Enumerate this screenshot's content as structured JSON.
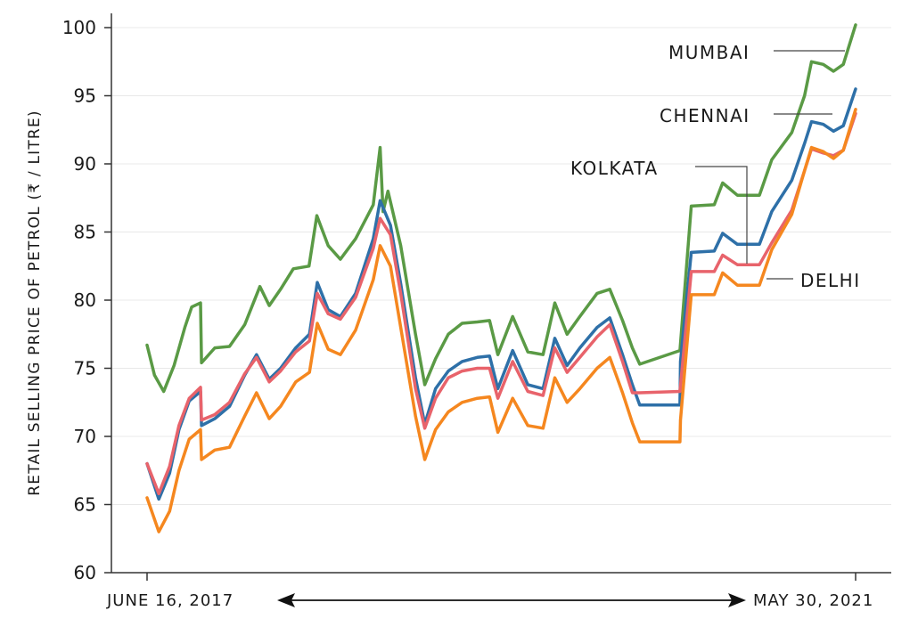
{
  "chart_data": {
    "type": "line",
    "ylabel": "RETAIL SELLING PRICE OF PETROL (₹ / LITRE)",
    "x_start_label": "JUNE 16, 2017",
    "x_end_label": "MAY 30, 2021",
    "x_range": [
      "2017-06-16",
      "2021-05-30"
    ],
    "ylim": [
      60,
      100
    ],
    "yticks": [
      60,
      65,
      70,
      75,
      80,
      85,
      90,
      95,
      100
    ],
    "grid": true,
    "series": [
      {
        "name": "MUMBAI",
        "color": "#5a9a45",
        "points": [
          [
            "2017-06-16",
            76.7
          ],
          [
            "2017-07-01",
            74.5
          ],
          [
            "2017-07-20",
            73.3
          ],
          [
            "2017-08-10",
            75.2
          ],
          [
            "2017-09-01",
            78.0
          ],
          [
            "2017-09-15",
            79.5
          ],
          [
            "2017-10-03",
            79.8
          ],
          [
            "2017-10-05",
            75.4
          ],
          [
            "2017-11-01",
            76.5
          ],
          [
            "2017-12-01",
            76.6
          ],
          [
            "2018-01-01",
            78.2
          ],
          [
            "2018-02-01",
            81.0
          ],
          [
            "2018-02-20",
            79.6
          ],
          [
            "2018-03-15",
            80.8
          ],
          [
            "2018-04-10",
            82.3
          ],
          [
            "2018-05-12",
            82.5
          ],
          [
            "2018-05-28",
            86.2
          ],
          [
            "2018-06-20",
            84.0
          ],
          [
            "2018-07-15",
            83.0
          ],
          [
            "2018-08-15",
            84.5
          ],
          [
            "2018-09-20",
            87.0
          ],
          [
            "2018-10-04",
            91.2
          ],
          [
            "2018-10-10",
            86.5
          ],
          [
            "2018-10-20",
            88.0
          ],
          [
            "2018-11-15",
            84.0
          ],
          [
            "2018-12-15",
            77.5
          ],
          [
            "2019-01-03",
            73.8
          ],
          [
            "2019-01-25",
            75.7
          ],
          [
            "2019-02-20",
            77.5
          ],
          [
            "2019-03-20",
            78.3
          ],
          [
            "2019-04-20",
            78.4
          ],
          [
            "2019-05-15",
            78.5
          ],
          [
            "2019-06-01",
            76.0
          ],
          [
            "2019-07-01",
            78.8
          ],
          [
            "2019-08-01",
            76.2
          ],
          [
            "2019-09-01",
            76.0
          ],
          [
            "2019-09-25",
            79.8
          ],
          [
            "2019-10-20",
            77.5
          ],
          [
            "2019-11-15",
            78.8
          ],
          [
            "2019-12-20",
            80.5
          ],
          [
            "2020-01-15",
            80.8
          ],
          [
            "2020-02-10",
            78.5
          ],
          [
            "2020-03-01",
            76.5
          ],
          [
            "2020-03-16",
            75.3
          ],
          [
            "2020-06-06",
            76.3
          ],
          [
            "2020-06-29",
            86.9
          ],
          [
            "2020-08-15",
            87.0
          ],
          [
            "2020-09-01",
            88.6
          ],
          [
            "2020-10-01",
            87.7
          ],
          [
            "2020-11-15",
            87.7
          ],
          [
            "2020-12-10",
            90.3
          ],
          [
            "2021-01-20",
            92.3
          ],
          [
            "2021-02-15",
            95.0
          ],
          [
            "2021-03-01",
            97.5
          ],
          [
            "2021-03-25",
            97.3
          ],
          [
            "2021-04-15",
            96.8
          ],
          [
            "2021-05-05",
            97.3
          ],
          [
            "2021-05-30",
            100.2
          ]
        ]
      },
      {
        "name": "CHENNAI",
        "color": "#2e70a8",
        "points": [
          [
            "2017-06-16",
            68.0
          ],
          [
            "2017-07-10",
            65.4
          ],
          [
            "2017-08-01",
            67.3
          ],
          [
            "2017-08-20",
            70.5
          ],
          [
            "2017-09-10",
            72.6
          ],
          [
            "2017-10-03",
            73.3
          ],
          [
            "2017-10-05",
            70.8
          ],
          [
            "2017-11-01",
            71.3
          ],
          [
            "2017-12-01",
            72.2
          ],
          [
            "2018-01-01",
            74.5
          ],
          [
            "2018-01-25",
            76.0
          ],
          [
            "2018-02-20",
            74.2
          ],
          [
            "2018-03-15",
            75.0
          ],
          [
            "2018-04-15",
            76.5
          ],
          [
            "2018-05-13",
            77.5
          ],
          [
            "2018-05-29",
            81.3
          ],
          [
            "2018-06-20",
            79.3
          ],
          [
            "2018-07-15",
            78.8
          ],
          [
            "2018-08-15",
            80.5
          ],
          [
            "2018-09-20",
            84.5
          ],
          [
            "2018-10-04",
            87.3
          ],
          [
            "2018-10-25",
            85.5
          ],
          [
            "2018-11-15",
            81.2
          ],
          [
            "2018-12-15",
            74.3
          ],
          [
            "2019-01-03",
            70.9
          ],
          [
            "2019-01-25",
            73.5
          ],
          [
            "2019-02-20",
            74.8
          ],
          [
            "2019-03-20",
            75.5
          ],
          [
            "2019-04-20",
            75.8
          ],
          [
            "2019-05-15",
            75.9
          ],
          [
            "2019-06-01",
            73.5
          ],
          [
            "2019-07-01",
            76.3
          ],
          [
            "2019-08-01",
            73.8
          ],
          [
            "2019-09-01",
            73.5
          ],
          [
            "2019-09-25",
            77.2
          ],
          [
            "2019-10-20",
            75.2
          ],
          [
            "2019-11-15",
            76.5
          ],
          [
            "2019-12-20",
            78.0
          ],
          [
            "2020-01-15",
            78.7
          ],
          [
            "2020-02-10",
            76.0
          ],
          [
            "2020-03-01",
            73.8
          ],
          [
            "2020-03-16",
            72.3
          ],
          [
            "2020-06-06",
            72.3
          ],
          [
            "2020-06-07",
            75.5
          ],
          [
            "2020-06-29",
            83.5
          ],
          [
            "2020-08-15",
            83.6
          ],
          [
            "2020-09-01",
            84.9
          ],
          [
            "2020-10-01",
            84.1
          ],
          [
            "2020-11-15",
            84.1
          ],
          [
            "2020-12-10",
            86.5
          ],
          [
            "2021-01-20",
            88.8
          ],
          [
            "2021-02-15",
            91.5
          ],
          [
            "2021-03-01",
            93.1
          ],
          [
            "2021-03-25",
            92.9
          ],
          [
            "2021-04-15",
            92.4
          ],
          [
            "2021-05-05",
            92.8
          ],
          [
            "2021-05-30",
            95.5
          ]
        ]
      },
      {
        "name": "KOLKATA",
        "color": "#e8636b",
        "points": [
          [
            "2017-06-16",
            68.0
          ],
          [
            "2017-07-10",
            65.8
          ],
          [
            "2017-08-01",
            67.8
          ],
          [
            "2017-08-20",
            70.8
          ],
          [
            "2017-09-10",
            72.8
          ],
          [
            "2017-10-03",
            73.6
          ],
          [
            "2017-10-05",
            71.2
          ],
          [
            "2017-11-01",
            71.6
          ],
          [
            "2017-12-01",
            72.5
          ],
          [
            "2018-01-01",
            74.6
          ],
          [
            "2018-01-25",
            75.8
          ],
          [
            "2018-02-20",
            74.0
          ],
          [
            "2018-03-15",
            74.8
          ],
          [
            "2018-04-15",
            76.2
          ],
          [
            "2018-05-13",
            77.0
          ],
          [
            "2018-05-29",
            80.5
          ],
          [
            "2018-06-20",
            79.0
          ],
          [
            "2018-07-15",
            78.6
          ],
          [
            "2018-08-15",
            80.2
          ],
          [
            "2018-09-20",
            83.8
          ],
          [
            "2018-10-04",
            86.0
          ],
          [
            "2018-10-25",
            84.8
          ],
          [
            "2018-11-15",
            80.5
          ],
          [
            "2018-12-15",
            73.5
          ],
          [
            "2019-01-03",
            70.6
          ],
          [
            "2019-01-25",
            72.8
          ],
          [
            "2019-02-20",
            74.3
          ],
          [
            "2019-03-20",
            74.8
          ],
          [
            "2019-04-20",
            75.0
          ],
          [
            "2019-05-15",
            75.0
          ],
          [
            "2019-06-01",
            72.8
          ],
          [
            "2019-07-01",
            75.5
          ],
          [
            "2019-08-01",
            73.3
          ],
          [
            "2019-09-01",
            73.0
          ],
          [
            "2019-09-25",
            76.5
          ],
          [
            "2019-10-20",
            74.7
          ],
          [
            "2019-11-15",
            75.8
          ],
          [
            "2019-12-20",
            77.3
          ],
          [
            "2020-01-15",
            78.2
          ],
          [
            "2020-02-10",
            75.5
          ],
          [
            "2020-03-01",
            73.2
          ],
          [
            "2020-03-16",
            73.2
          ],
          [
            "2020-06-06",
            73.3
          ],
          [
            "2020-06-29",
            82.1
          ],
          [
            "2020-08-15",
            82.1
          ],
          [
            "2020-09-01",
            83.3
          ],
          [
            "2020-10-01",
            82.6
          ],
          [
            "2020-11-15",
            82.6
          ],
          [
            "2020-12-10",
            84.2
          ],
          [
            "2021-01-20",
            86.6
          ],
          [
            "2021-02-15",
            89.5
          ],
          [
            "2021-03-01",
            91.1
          ],
          [
            "2021-03-25",
            90.8
          ],
          [
            "2021-04-15",
            90.6
          ],
          [
            "2021-05-05",
            91.0
          ],
          [
            "2021-05-30",
            93.7
          ]
        ]
      },
      {
        "name": "DELHI",
        "color": "#f5871f",
        "points": [
          [
            "2017-06-16",
            65.5
          ],
          [
            "2017-07-10",
            63.0
          ],
          [
            "2017-08-01",
            64.5
          ],
          [
            "2017-08-20",
            67.5
          ],
          [
            "2017-09-10",
            69.8
          ],
          [
            "2017-10-03",
            70.5
          ],
          [
            "2017-10-05",
            68.3
          ],
          [
            "2017-11-01",
            69.0
          ],
          [
            "2017-12-01",
            69.2
          ],
          [
            "2018-01-01",
            71.5
          ],
          [
            "2018-01-25",
            73.2
          ],
          [
            "2018-02-20",
            71.3
          ],
          [
            "2018-03-15",
            72.2
          ],
          [
            "2018-04-15",
            74.0
          ],
          [
            "2018-05-13",
            74.7
          ],
          [
            "2018-05-29",
            78.3
          ],
          [
            "2018-06-20",
            76.4
          ],
          [
            "2018-07-15",
            76.0
          ],
          [
            "2018-08-15",
            77.8
          ],
          [
            "2018-09-20",
            81.5
          ],
          [
            "2018-10-04",
            84.0
          ],
          [
            "2018-10-25",
            82.5
          ],
          [
            "2018-11-15",
            78.0
          ],
          [
            "2018-12-15",
            71.5
          ],
          [
            "2019-01-03",
            68.3
          ],
          [
            "2019-01-25",
            70.5
          ],
          [
            "2019-02-20",
            71.8
          ],
          [
            "2019-03-20",
            72.5
          ],
          [
            "2019-04-20",
            72.8
          ],
          [
            "2019-05-15",
            72.9
          ],
          [
            "2019-06-01",
            70.3
          ],
          [
            "2019-07-01",
            72.8
          ],
          [
            "2019-08-01",
            70.8
          ],
          [
            "2019-09-01",
            70.6
          ],
          [
            "2019-09-25",
            74.3
          ],
          [
            "2019-10-20",
            72.5
          ],
          [
            "2019-11-15",
            73.5
          ],
          [
            "2019-12-20",
            75.0
          ],
          [
            "2020-01-15",
            75.8
          ],
          [
            "2020-02-10",
            73.2
          ],
          [
            "2020-03-01",
            71.0
          ],
          [
            "2020-03-16",
            69.6
          ],
          [
            "2020-06-06",
            69.6
          ],
          [
            "2020-06-07",
            71.2
          ],
          [
            "2020-06-29",
            80.4
          ],
          [
            "2020-08-15",
            80.4
          ],
          [
            "2020-09-01",
            82.0
          ],
          [
            "2020-10-01",
            81.1
          ],
          [
            "2020-11-15",
            81.1
          ],
          [
            "2020-12-10",
            83.7
          ],
          [
            "2021-01-20",
            86.3
          ],
          [
            "2021-02-15",
            89.5
          ],
          [
            "2021-03-01",
            91.2
          ],
          [
            "2021-03-25",
            90.9
          ],
          [
            "2021-04-15",
            90.4
          ],
          [
            "2021-05-05",
            91.0
          ],
          [
            "2021-05-30",
            94.0
          ]
        ]
      }
    ]
  }
}
